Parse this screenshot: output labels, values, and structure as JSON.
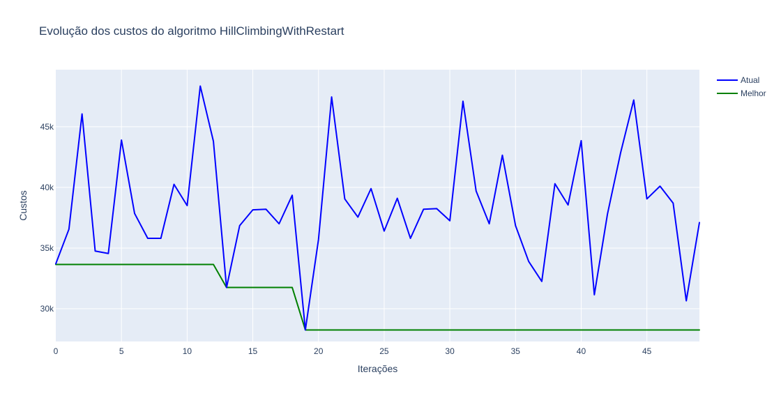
{
  "chart_data": {
    "type": "line",
    "title": "Evolução dos custos do algoritmo HillClimbingWithRestart",
    "xlabel": "Iterações",
    "ylabel": "Custos",
    "xlim": [
      0,
      49
    ],
    "ylim": [
      27300,
      49700
    ],
    "x_ticks": [
      0,
      5,
      10,
      15,
      20,
      25,
      30,
      35,
      40,
      45
    ],
    "y_ticks": [
      30000,
      35000,
      40000,
      45000
    ],
    "y_tick_labels": [
      "30k",
      "35k",
      "40k",
      "45k"
    ],
    "grid": true,
    "legend_position": "top-right",
    "colors": {
      "plot_background": "#e5ecf6",
      "grid": "#ffffff"
    },
    "series": [
      {
        "name": "Atual",
        "color": "#0000ff",
        "values": [
          33700,
          36550,
          46050,
          34750,
          34550,
          43900,
          37850,
          35800,
          35800,
          40250,
          38500,
          48350,
          43800,
          31750,
          36850,
          38150,
          38200,
          37000,
          39350,
          28250,
          35700,
          47450,
          39050,
          37550,
          39900,
          36400,
          39100,
          35800,
          38200,
          38250,
          37250,
          47100,
          39700,
          37000,
          42650,
          36850,
          33900,
          32250,
          40300,
          38550,
          43850,
          31150,
          37800,
          42850,
          47200,
          39050,
          40100,
          38700,
          30650,
          37100
        ]
      },
      {
        "name": "Melhor",
        "color": "#008000",
        "values": [
          33650,
          33650,
          33650,
          33650,
          33650,
          33650,
          33650,
          33650,
          33650,
          33650,
          33650,
          33650,
          33650,
          31750,
          31750,
          31750,
          31750,
          31750,
          31750,
          28250,
          28250,
          28250,
          28250,
          28250,
          28250,
          28250,
          28250,
          28250,
          28250,
          28250,
          28250,
          28250,
          28250,
          28250,
          28250,
          28250,
          28250,
          28250,
          28250,
          28250,
          28250,
          28250,
          28250,
          28250,
          28250,
          28250,
          28250,
          28250,
          28250,
          28250
        ]
      }
    ]
  }
}
